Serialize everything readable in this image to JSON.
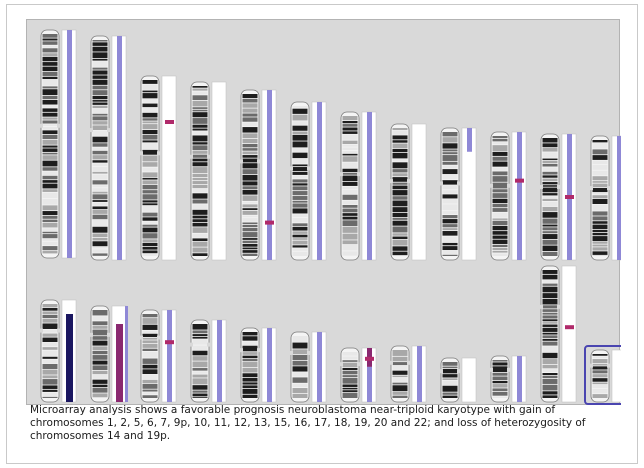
{
  "figure": {
    "caption": "Microarray analysis shows a favorable prognosis neuroblastoma near-triploid karyotype with gain of chromosomes 1, 2, 5, 6, 7, 9p, 10, 11, 12, 13, 15, 16, 17, 18, 19, 20 and 22; and loss of heterozygosity of chromosomes 14 and 19p."
  },
  "colors": {
    "panel_background": "#d9d9d9",
    "copy_number_track": "#8f88d6",
    "highlight_mark": "#b02a6a",
    "selection_frame": "#4a45b0",
    "strong_track": "#1a1660",
    "magenta_track": "#8a2870"
  },
  "karyotype": {
    "rows": [
      {
        "chromosomes": [
          {
            "id": "chr1",
            "track": "gain"
          },
          {
            "id": "chr2",
            "track": "gain"
          },
          {
            "id": "chr3",
            "track": "none",
            "mark": 0.25
          },
          {
            "id": "chr4",
            "track": "none"
          },
          {
            "id": "chr5",
            "track": "gain",
            "mark": 0.78
          },
          {
            "id": "chr6",
            "track": "gain"
          },
          {
            "id": "chr7",
            "track": "gain"
          },
          {
            "id": "chr8",
            "track": "none"
          },
          {
            "id": "chr9",
            "track": "partial",
            "partial": 0.18
          },
          {
            "id": "chr10",
            "track": "gain",
            "mark": 0.38
          },
          {
            "id": "chr11",
            "track": "gain",
            "mark": 0.5
          },
          {
            "id": "chr12",
            "track": "gain"
          }
        ]
      },
      {
        "chromosomes": [
          {
            "id": "chr13",
            "track": "strong"
          },
          {
            "id": "chr14",
            "track": "loh"
          },
          {
            "id": "chr15",
            "track": "gain",
            "mark": 0.35
          },
          {
            "id": "chr16",
            "track": "gain"
          },
          {
            "id": "chr17",
            "track": "gain"
          },
          {
            "id": "chr18",
            "track": "gain"
          },
          {
            "id": "chr19",
            "track": "split",
            "mark": 0.2
          },
          {
            "id": "chr20",
            "track": "gain"
          },
          {
            "id": "chr21",
            "track": "none"
          },
          {
            "id": "chr22",
            "track": "gain"
          },
          {
            "id": "chrX",
            "track": "none",
            "mark": 0.45
          },
          {
            "id": "chrY",
            "track": "none",
            "selected": true
          }
        ]
      }
    ]
  }
}
